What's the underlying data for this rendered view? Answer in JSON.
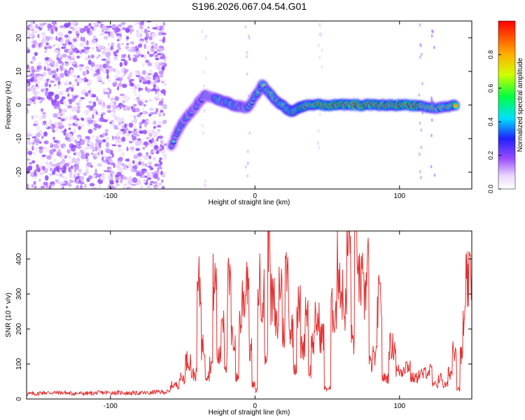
{
  "title": "S196.2026.067.04.54.G01",
  "colors": {
    "line": "#e53030",
    "frame": "#000000",
    "background": "#ffffff"
  },
  "chart_data": [
    {
      "type": "heatmap",
      "xlabel": "Height of straight line (km)",
      "ylabel": "Frequency (Hz)",
      "xlim": [
        -158,
        150
      ],
      "ylim": [
        -25,
        25
      ],
      "xticks": [
        "-100",
        "0",
        "100"
      ],
      "xtick_values": [
        -100,
        0,
        100
      ],
      "yticks": [
        "-20",
        "-10",
        "0",
        "10",
        "20"
      ],
      "ytick_values": [
        -20,
        -10,
        0,
        10,
        20
      ],
      "colorbar": {
        "label": "Normalized spectral amplitude",
        "range": [
          0,
          1
        ],
        "ticks": [
          "0.0",
          "0.2",
          "0.4",
          "0.6",
          "0.8"
        ],
        "tick_values": [
          0,
          0.2,
          0.4,
          0.6,
          0.8
        ]
      },
      "noise_region_x": [
        -158,
        -62
      ],
      "ridge": [
        {
          "x": -58,
          "y": -12,
          "a": 0.45
        },
        {
          "x": -50,
          "y": -5,
          "a": 0.5
        },
        {
          "x": -42,
          "y": -1,
          "a": 0.5
        },
        {
          "x": -35,
          "y": 3,
          "a": 0.4
        },
        {
          "x": -25,
          "y": 1.5,
          "a": 0.6
        },
        {
          "x": -15,
          "y": 0,
          "a": 0.6
        },
        {
          "x": -5,
          "y": -1,
          "a": 0.5
        },
        {
          "x": 5,
          "y": 6,
          "a": 0.6
        },
        {
          "x": 15,
          "y": 1,
          "a": 0.7
        },
        {
          "x": 25,
          "y": -2,
          "a": 0.75
        },
        {
          "x": 35,
          "y": 0,
          "a": 0.8
        },
        {
          "x": 50,
          "y": 0,
          "a": 0.85
        },
        {
          "x": 65,
          "y": 0,
          "a": 0.9
        },
        {
          "x": 80,
          "y": 0,
          "a": 0.9
        },
        {
          "x": 95,
          "y": 0,
          "a": 0.85
        },
        {
          "x": 110,
          "y": 0,
          "a": 0.9
        },
        {
          "x": 125,
          "y": -1,
          "a": 0.6
        },
        {
          "x": 140,
          "y": 0,
          "a": 0.85
        }
      ]
    },
    {
      "type": "line",
      "xlabel": "Height of straight line (km)",
      "ylabel": "SNR (10 * v/v)",
      "xlim": [
        -158,
        150
      ],
      "ylim": [
        0,
        480
      ],
      "xticks": [
        "-100",
        "0",
        "100"
      ],
      "xtick_values": [
        -100,
        0,
        100
      ],
      "yticks": [
        "0",
        "100",
        "200",
        "300",
        "400"
      ],
      "ytick_values": [
        0,
        100,
        200,
        300,
        400
      ],
      "series": [
        {
          "name": "SNR",
          "x": [
            -158,
            -140,
            -120,
            -100,
            -80,
            -62,
            -55,
            -50,
            -46,
            -42,
            -38,
            -36,
            -33,
            -30,
            -28,
            -25,
            -22,
            -20,
            -18,
            -15,
            -12,
            -10,
            -8,
            -5,
            -3,
            -1,
            1,
            3,
            5,
            8,
            10,
            12,
            15,
            18,
            20,
            22,
            25,
            28,
            30,
            33,
            36,
            38,
            40,
            43,
            46,
            50,
            55,
            58,
            60,
            62,
            65,
            68,
            70,
            73,
            76,
            78,
            80,
            83,
            86,
            90,
            95,
            100,
            105,
            110,
            115,
            120,
            125,
            128,
            132,
            135,
            138,
            141,
            143,
            145,
            147,
            150
          ],
          "values": [
            15,
            18,
            16,
            18,
            17,
            20,
            40,
            60,
            110,
            70,
            320,
            150,
            70,
            100,
            330,
            120,
            240,
            100,
            320,
            170,
            60,
            220,
            290,
            360,
            140,
            40,
            25,
            330,
            300,
            120,
            490,
            280,
            210,
            330,
            190,
            360,
            200,
            95,
            260,
            150,
            260,
            80,
            160,
            220,
            180,
            30,
            250,
            380,
            300,
            260,
            440,
            170,
            450,
            330,
            290,
            410,
            100,
            120,
            280,
            60,
            150,
            80,
            95,
            60,
            70,
            80,
            40,
            60,
            40,
            75,
            150,
            30,
            120,
            220,
            330,
            360
          ]
        }
      ]
    }
  ]
}
